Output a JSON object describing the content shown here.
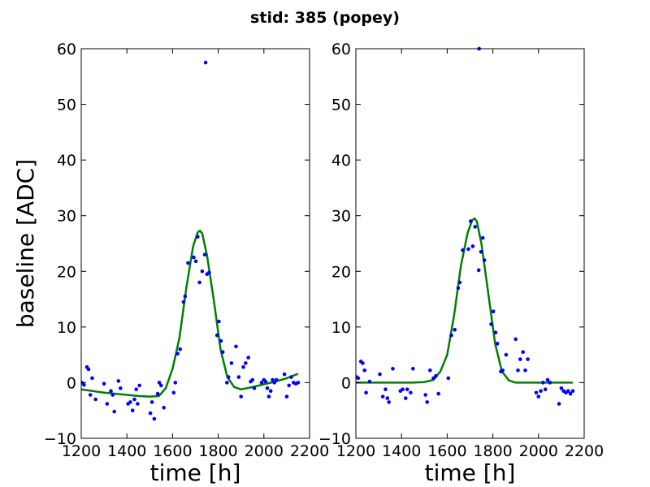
{
  "figure": {
    "suptitle": "stid: 385 (popey)",
    "ylabel": "baseline [ADC]"
  },
  "chart_data": [
    {
      "type": "scatter",
      "title": "",
      "xlabel": "time [h]",
      "ylabel": "baseline [ADC]",
      "xlim": [
        1200,
        2200
      ],
      "ylim": [
        -10,
        60
      ],
      "xticks": [
        "1200",
        "1400",
        "1600",
        "1800",
        "2000",
        "2200"
      ],
      "yticks": [
        "−10",
        "0",
        "10",
        "20",
        "30",
        "40",
        "50",
        "60"
      ],
      "xtick_values": [
        1200,
        1400,
        1600,
        1800,
        2000,
        2200
      ],
      "ytick_values": [
        -10,
        0,
        10,
        20,
        30,
        40,
        50,
        60
      ],
      "grid": false,
      "colors": {
        "points": "#0000ff",
        "fit": "#007f00"
      },
      "points": {
        "x": [
          1203,
          1212,
          1225,
          1232,
          1240,
          1248,
          1263,
          1300,
          1313,
          1330,
          1338,
          1345,
          1363,
          1372,
          1405,
          1415,
          1425,
          1433,
          1441,
          1447,
          1455,
          1503,
          1510,
          1520,
          1535,
          1542,
          1550,
          1562,
          1605,
          1612,
          1622,
          1633,
          1648,
          1655,
          1668,
          1693,
          1702,
          1710,
          1718,
          1730,
          1741,
          1751,
          1760,
          1745,
          1795,
          1803,
          1812,
          1820,
          1838,
          1845,
          1858,
          1878,
          1890,
          1900,
          1910,
          1920,
          1932,
          1942,
          1950,
          1958,
          1990,
          2000,
          2008,
          2015,
          2022,
          2030,
          2038,
          2046,
          2055,
          2090,
          2100,
          2110,
          2120,
          2130,
          2140,
          2150
        ],
        "y": [
          0.0,
          -0.4,
          2.8,
          2.4,
          -2.2,
          0.8,
          -3.0,
          -0.2,
          -3.8,
          -1.5,
          -2.2,
          -5.2,
          0.3,
          -1.0,
          -3.8,
          -3.5,
          -5.0,
          -3.0,
          -1.2,
          -3.8,
          -0.5,
          -5.5,
          -3.5,
          -6.5,
          -2.0,
          0.0,
          -0.5,
          -4.5,
          -1.8,
          0.0,
          5.2,
          6.0,
          14.5,
          15.5,
          21.5,
          22.5,
          21.8,
          26.2,
          18.0,
          20.0,
          23.0,
          19.5,
          19.8,
          57.5,
          8.5,
          11.0,
          7.5,
          5.5,
          0.0,
          1.0,
          3.5,
          6.5,
          1.0,
          -2.5,
          2.8,
          3.5,
          4.5,
          0.2,
          0.5,
          -1.0,
          0.0,
          0.5,
          0.2,
          -1.0,
          -2.5,
          -1.5,
          0.5,
          0.0,
          0.5,
          1.5,
          -2.5,
          -0.5,
          1.0,
          0.0,
          -0.2,
          0.0
        ]
      },
      "fit": {
        "x": [
          1200,
          1300,
          1400,
          1450,
          1500,
          1540,
          1570,
          1600,
          1630,
          1660,
          1690,
          1710,
          1720,
          1730,
          1750,
          1780,
          1810,
          1840,
          1870,
          1900,
          1950,
          2000,
          2050,
          2100,
          2150
        ],
        "y": [
          -1.2,
          -1.8,
          -2.2,
          -2.4,
          -2.5,
          -2.4,
          -1.0,
          2.5,
          8.0,
          17.0,
          24.5,
          27.0,
          27.3,
          26.8,
          23.0,
          15.0,
          6.0,
          1.0,
          -0.8,
          -1.2,
          -0.8,
          -0.3,
          0.2,
          0.8,
          1.6
        ]
      }
    },
    {
      "type": "scatter",
      "title": "",
      "xlabel": "time [h]",
      "ylabel": "",
      "xlim": [
        1200,
        2200
      ],
      "ylim": [
        -10,
        60
      ],
      "xticks": [
        "1200",
        "1400",
        "1600",
        "1800",
        "2000",
        "2200"
      ],
      "yticks": [
        "−10",
        "0",
        "10",
        "20",
        "30",
        "40",
        "50",
        "60"
      ],
      "xtick_values": [
        1200,
        1400,
        1600,
        1800,
        2000,
        2200
      ],
      "ytick_values": [
        -10,
        0,
        10,
        20,
        30,
        40,
        50,
        60
      ],
      "grid": false,
      "colors": {
        "points": "#0000ff",
        "fit": "#007f00"
      },
      "points": {
        "x": [
          1203,
          1210,
          1222,
          1230,
          1238,
          1245,
          1260,
          1305,
          1318,
          1330,
          1338,
          1345,
          1362,
          1395,
          1405,
          1418,
          1425,
          1440,
          1450,
          1505,
          1512,
          1525,
          1540,
          1550,
          1562,
          1605,
          1618,
          1633,
          1648,
          1655,
          1668,
          1693,
          1703,
          1712,
          1722,
          1738,
          1748,
          1756,
          1763,
          1740,
          1793,
          1802,
          1812,
          1820,
          1835,
          1843,
          1858,
          1900,
          1910,
          1920,
          1932,
          1942,
          1953,
          1990,
          2000,
          2010,
          2020,
          2030,
          2040,
          2050,
          2090,
          2100,
          2110,
          2120,
          2130,
          2140,
          2150
        ],
        "y": [
          1.0,
          0.8,
          3.8,
          3.5,
          2.2,
          -1.8,
          0.2,
          1.5,
          -2.5,
          -1.2,
          -2.8,
          -3.5,
          2.5,
          -1.5,
          -1.2,
          -2.8,
          -1.2,
          -1.8,
          2.5,
          -2.2,
          -3.5,
          2.2,
          0.8,
          1.2,
          -2.0,
          0.8,
          8.5,
          9.5,
          17.0,
          18.0,
          23.8,
          24.0,
          29.0,
          24.5,
          28.0,
          20.2,
          23.5,
          26.0,
          22.0,
          60.0,
          10.5,
          12.8,
          9.0,
          7.0,
          2.0,
          2.2,
          5.0,
          7.8,
          2.2,
          4.2,
          5.5,
          2.2,
          4.2,
          -1.8,
          -2.5,
          -1.5,
          0.0,
          -1.2,
          0.5,
          0.0,
          -3.8,
          -1.0,
          -1.5,
          -1.8,
          -1.5,
          -2.0,
          -1.5
        ]
      },
      "fit": {
        "x": [
          1200,
          1300,
          1400,
          1450,
          1500,
          1540,
          1570,
          1600,
          1630,
          1660,
          1690,
          1710,
          1720,
          1730,
          1750,
          1780,
          1810,
          1840,
          1870,
          1900,
          1950,
          2000,
          2050,
          2100,
          2150
        ],
        "y": [
          0.0,
          0.0,
          0.0,
          0.0,
          0.1,
          0.5,
          2.0,
          5.0,
          12.0,
          21.0,
          27.0,
          29.2,
          29.5,
          29.0,
          25.0,
          16.0,
          7.0,
          2.0,
          0.4,
          0.0,
          0.0,
          0.0,
          0.0,
          0.0,
          0.0
        ]
      }
    }
  ]
}
